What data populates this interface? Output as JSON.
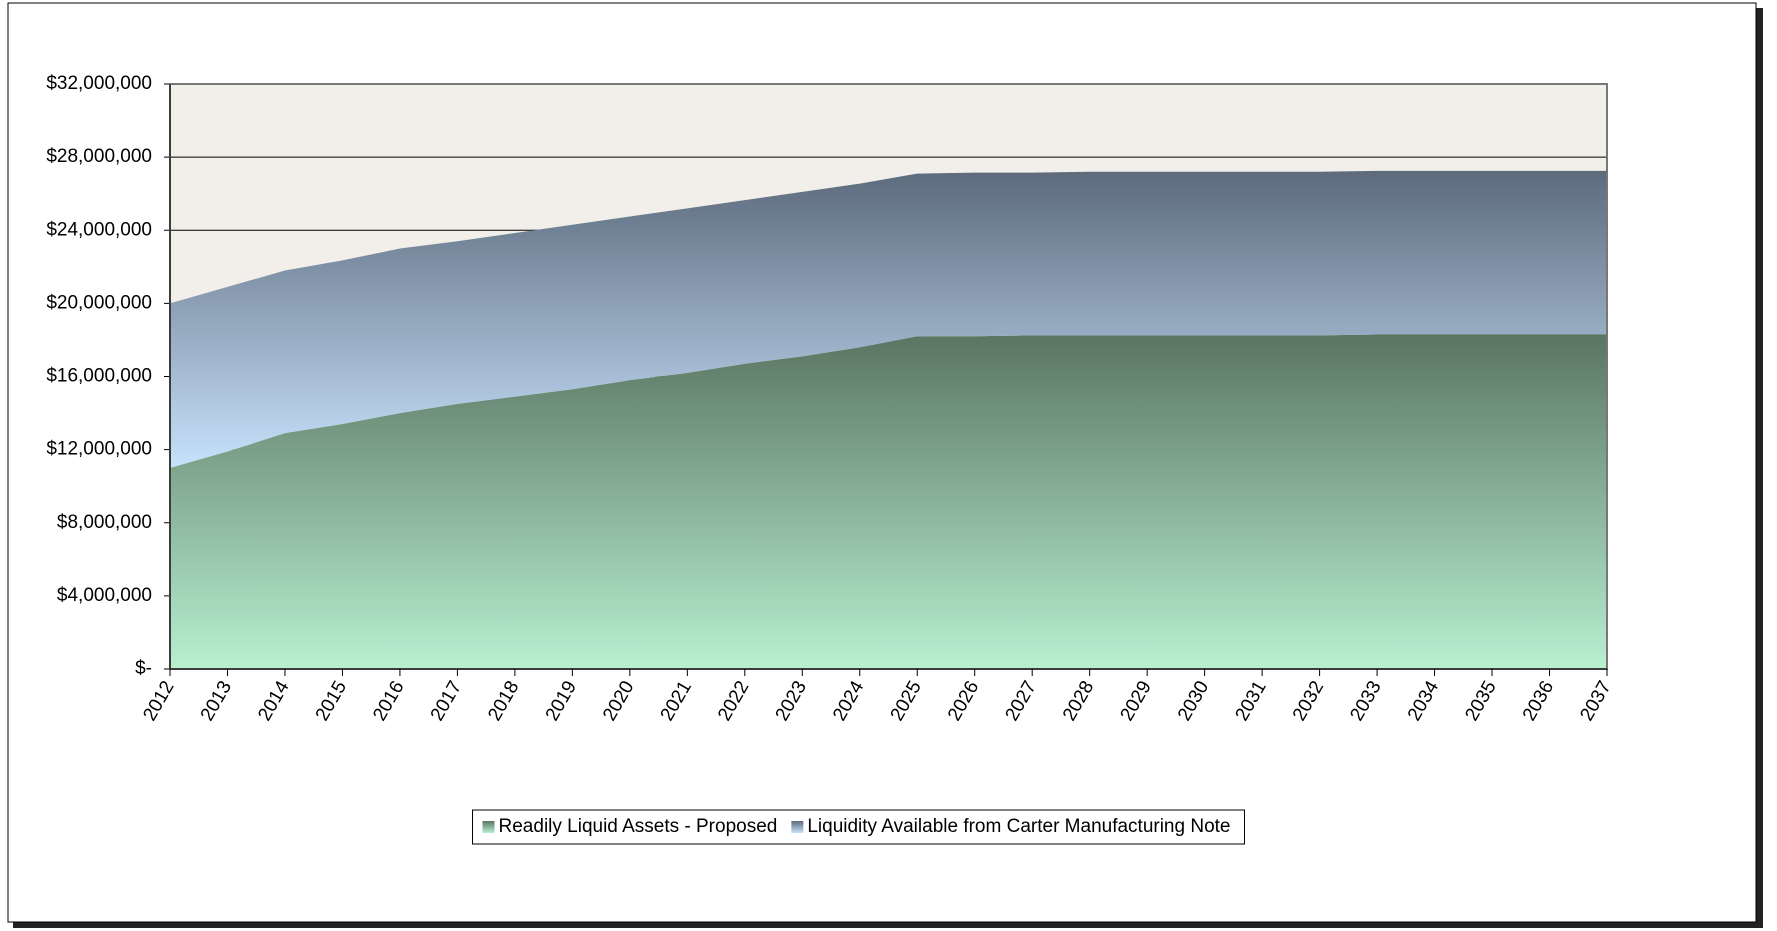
{
  "chart_data": {
    "type": "stacked_area",
    "categories": [
      "2012",
      "2013",
      "2014",
      "2015",
      "2016",
      "2017",
      "2018",
      "2019",
      "2020",
      "2021",
      "2022",
      "2023",
      "2024",
      "2025",
      "2026",
      "2027",
      "2028",
      "2029",
      "2030",
      "2031",
      "2032",
      "2033",
      "2034",
      "2035",
      "2036",
      "2037"
    ],
    "series": [
      {
        "name": "Readily Liquid Assets - Proposed",
        "color": "#5a7562",
        "values": [
          11000000,
          11900000,
          12900000,
          13400000,
          14000000,
          14500000,
          14900000,
          15300000,
          15800000,
          16200000,
          16700000,
          17100000,
          17600000,
          18200000,
          18200000,
          18250000,
          18250000,
          18250000,
          18250000,
          18250000,
          18250000,
          18300000,
          18300000,
          18300000,
          18300000,
          18300000
        ]
      },
      {
        "name": "Liquidity Available from Carter Manufacturing Note",
        "color": "#5c6a7c",
        "values": [
          9000000,
          9000000,
          8900000,
          8950000,
          9000000,
          8900000,
          8950000,
          9000000,
          8950000,
          9000000,
          8950000,
          9000000,
          8950000,
          8900000,
          8950000,
          8900000,
          8950000,
          8950000,
          8950000,
          8950000,
          8950000,
          8950000,
          8950000,
          8950000,
          8950000,
          8950000
        ]
      }
    ],
    "ylim": [
      0,
      32000000
    ],
    "yticks": [
      {
        "value": 0,
        "label": "$-"
      },
      {
        "value": 4000000,
        "label": "$4,000,000"
      },
      {
        "value": 8000000,
        "label": "$8,000,000"
      },
      {
        "value": 12000000,
        "label": "$12,000,000"
      },
      {
        "value": 16000000,
        "label": "$16,000,000"
      },
      {
        "value": 20000000,
        "label": "$20,000,000"
      },
      {
        "value": 24000000,
        "label": "$24,000,000"
      },
      {
        "value": 28000000,
        "label": "$28,000,000"
      },
      {
        "value": 32000000,
        "label": "$32,000,000"
      }
    ],
    "grid": true,
    "legend": "bottom"
  }
}
